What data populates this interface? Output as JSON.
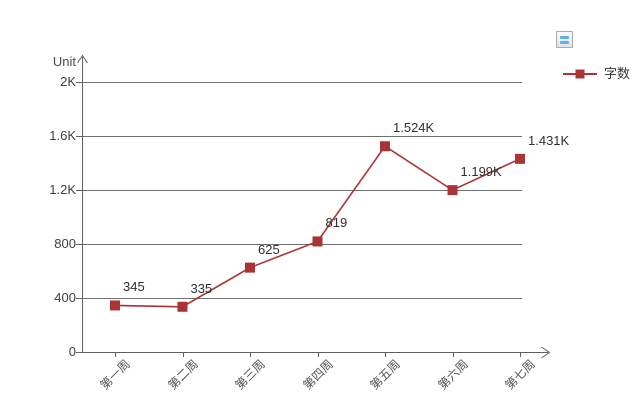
{
  "toolbar": {
    "menu_button_icon": "menu-icon"
  },
  "legend": {
    "position": "top-right",
    "items": [
      {
        "label": "字数",
        "color": "#a93335",
        "marker": "square"
      }
    ]
  },
  "chart_data": {
    "type": "line",
    "title": "",
    "xlabel": "",
    "ylabel": "Unit",
    "categories": [
      "第一周",
      "第二周",
      "第三周",
      "第四周",
      "第五周",
      "第六周",
      "第七周"
    ],
    "series": [
      {
        "name": "字数",
        "color": "#a93335",
        "marker": "square",
        "values": [
          345,
          335,
          625,
          819,
          1524,
          1199,
          1431
        ],
        "value_labels": [
          "345",
          "335",
          "625",
          "819",
          "1.524K",
          "1.199K",
          "1.431K"
        ]
      }
    ],
    "yticks": [
      {
        "v": 0,
        "label": "0"
      },
      {
        "v": 400,
        "label": "400"
      },
      {
        "v": 800,
        "label": "800"
      },
      {
        "v": 1200,
        "label": "1.2K"
      },
      {
        "v": 1600,
        "label": "1.6K"
      },
      {
        "v": 2000,
        "label": "2K"
      }
    ],
    "ylim": [
      0,
      2000
    ],
    "grid": true,
    "legend_position": "top-right",
    "colors": {
      "series": "#a93335",
      "grid": "#707070",
      "axis": "#606060",
      "tick_text": "#3f3f3f",
      "data_label": "#2f2f2f",
      "x_label": "#555555",
      "legend_text": "#333333",
      "menu_icon_bar": "#57b4e3"
    }
  }
}
